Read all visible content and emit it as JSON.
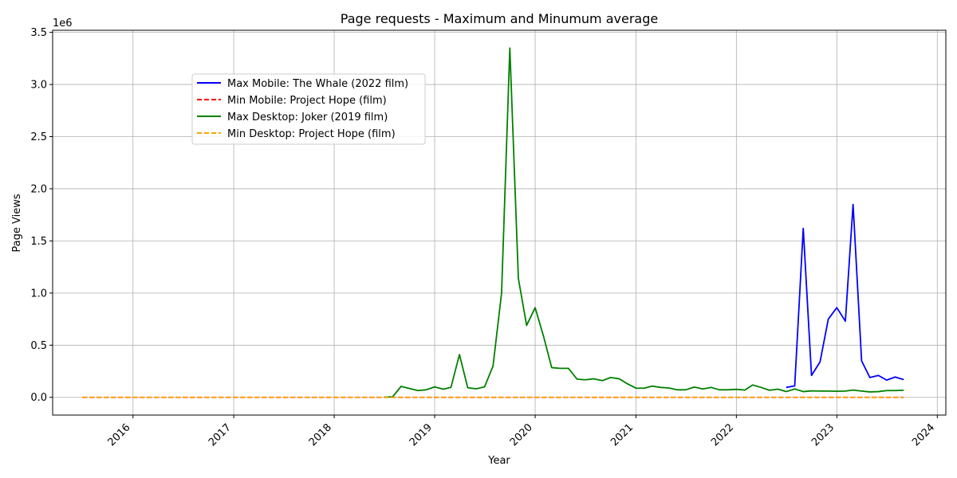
{
  "chart_data": {
    "type": "line",
    "title": "Page requests - Maximum and Minumum average",
    "xlabel": "Year",
    "ylabel": "Page Views",
    "y_offset_text": "1e6",
    "xlim": [
      "2015-03-15",
      "2024-02-01"
    ],
    "ylim": [
      -170000,
      3520000
    ],
    "x_ticks": [
      "2016-01-01",
      "2017-01-01",
      "2018-01-01",
      "2019-01-01",
      "2020-01-01",
      "2021-01-01",
      "2022-01-01",
      "2023-01-01",
      "2024-01-01"
    ],
    "x_tick_labels": [
      "2016",
      "2017",
      "2018",
      "2019",
      "2020",
      "2021",
      "2022",
      "2023",
      "2024"
    ],
    "y_ticks": [
      0,
      500000,
      1000000,
      1500000,
      2000000,
      2500000,
      3000000,
      3500000
    ],
    "y_tick_labels": [
      "0.0",
      "0.5",
      "1.0",
      "1.5",
      "2.0",
      "2.5",
      "3.0",
      "3.5"
    ],
    "grid": true,
    "legend_position": "upper-left",
    "series": [
      {
        "name": "Max Mobile: The Whale (2022 film)",
        "color": "#0000ff",
        "style": "solid",
        "x": [
          "2022-07-01",
          "2022-08-01",
          "2022-09-01",
          "2022-10-01",
          "2022-11-01",
          "2022-12-01",
          "2023-01-01",
          "2023-02-01",
          "2023-03-01",
          "2023-04-01",
          "2023-05-01",
          "2023-06-01",
          "2023-07-01",
          "2023-08-01",
          "2023-09-01"
        ],
        "y": [
          95000,
          110000,
          1620000,
          210000,
          340000,
          750000,
          860000,
          730000,
          1850000,
          350000,
          190000,
          210000,
          165000,
          195000,
          170000
        ]
      },
      {
        "name": "Min Mobile: Project Hope (film)",
        "color": "#ff0000",
        "style": "dashed",
        "x": [
          "2015-07-01",
          "2015-08-01",
          "2015-09-01",
          "2015-10-01",
          "2015-11-01",
          "2015-12-01",
          "2016-01-01",
          "2016-02-01",
          "2016-03-01",
          "2016-04-01",
          "2016-05-01",
          "2016-06-01",
          "2016-07-01",
          "2016-08-01",
          "2016-09-01",
          "2016-10-01",
          "2016-11-01",
          "2016-12-01",
          "2017-01-01",
          "2017-02-01",
          "2017-03-01",
          "2017-04-01",
          "2017-05-01",
          "2017-06-01",
          "2017-07-01",
          "2017-08-01",
          "2017-09-01",
          "2017-10-01",
          "2017-11-01",
          "2017-12-01",
          "2018-01-01",
          "2018-02-01",
          "2018-03-01",
          "2018-04-01",
          "2018-05-01",
          "2018-06-01",
          "2018-07-01",
          "2018-08-01",
          "2018-09-01",
          "2018-10-01",
          "2018-11-01",
          "2018-12-01",
          "2019-01-01",
          "2019-02-01",
          "2019-03-01",
          "2019-04-01",
          "2019-05-01",
          "2019-06-01",
          "2019-07-01",
          "2019-08-01",
          "2019-09-01",
          "2019-10-01",
          "2019-11-01",
          "2019-12-01",
          "2020-01-01",
          "2020-02-01",
          "2020-03-01",
          "2020-04-01",
          "2020-05-01",
          "2020-06-01",
          "2020-07-01",
          "2020-08-01",
          "2020-09-01",
          "2020-10-01",
          "2020-11-01",
          "2020-12-01",
          "2021-01-01",
          "2021-02-01",
          "2021-03-01",
          "2021-04-01",
          "2021-05-01",
          "2021-06-01",
          "2021-07-01",
          "2021-08-01",
          "2021-09-01",
          "2021-10-01",
          "2021-11-01",
          "2021-12-01",
          "2022-01-01",
          "2022-02-01",
          "2022-03-01",
          "2022-04-01",
          "2022-05-01",
          "2022-06-01",
          "2022-07-01",
          "2022-08-01",
          "2022-09-01",
          "2022-10-01",
          "2022-11-01",
          "2022-12-01",
          "2023-01-01",
          "2023-02-01",
          "2023-03-01",
          "2023-04-01",
          "2023-05-01",
          "2023-06-01",
          "2023-07-01",
          "2023-08-01",
          "2023-09-01"
        ],
        "y": "zeros"
      },
      {
        "name": "Max Desktop: Joker (2019 film)",
        "color": "#008000",
        "style": "solid",
        "x": [
          "2018-07-01",
          "2018-08-01",
          "2018-09-01",
          "2018-10-01",
          "2018-11-01",
          "2018-12-01",
          "2019-01-01",
          "2019-02-01",
          "2019-03-01",
          "2019-04-01",
          "2019-05-01",
          "2019-06-01",
          "2019-07-01",
          "2019-08-01",
          "2019-09-01",
          "2019-10-01",
          "2019-11-01",
          "2019-12-01",
          "2020-01-01",
          "2020-02-01",
          "2020-03-01",
          "2020-04-01",
          "2020-05-01",
          "2020-06-01",
          "2020-07-01",
          "2020-08-01",
          "2020-09-01",
          "2020-10-01",
          "2020-11-01",
          "2020-12-01",
          "2021-01-01",
          "2021-02-01",
          "2021-03-01",
          "2021-04-01",
          "2021-05-01",
          "2021-06-01",
          "2021-07-01",
          "2021-08-01",
          "2021-09-01",
          "2021-10-01",
          "2021-11-01",
          "2021-12-01",
          "2022-01-01",
          "2022-02-01",
          "2022-03-01",
          "2022-04-01",
          "2022-05-01",
          "2022-06-01",
          "2022-07-01",
          "2022-08-01",
          "2022-09-01",
          "2022-10-01",
          "2022-11-01",
          "2022-12-01",
          "2023-01-01",
          "2023-02-01",
          "2023-03-01",
          "2023-04-01",
          "2023-05-01",
          "2023-06-01",
          "2023-07-01",
          "2023-08-01",
          "2023-09-01"
        ],
        "y": [
          2000,
          5000,
          105000,
          85000,
          65000,
          72000,
          100000,
          78000,
          95000,
          410000,
          92000,
          82000,
          100000,
          300000,
          1000000,
          3350000,
          1140000,
          690000,
          860000,
          580000,
          285000,
          278000,
          278000,
          175000,
          168000,
          178000,
          160000,
          190000,
          178000,
          130000,
          88000,
          88000,
          108000,
          95000,
          90000,
          72000,
          72000,
          98000,
          80000,
          95000,
          72000,
          72000,
          77000,
          70000,
          118000,
          95000,
          68000,
          78000,
          55000,
          80000,
          55000,
          62000,
          60000,
          60000,
          58000,
          60000,
          70000,
          60000,
          52000,
          55000,
          65000,
          65000,
          68000
        ]
      },
      {
        "name": "Min Desktop: Project Hope (film)",
        "color": "#ffa500",
        "style": "dashed",
        "x": "same-as-min-mobile",
        "y": "zeros"
      }
    ]
  }
}
